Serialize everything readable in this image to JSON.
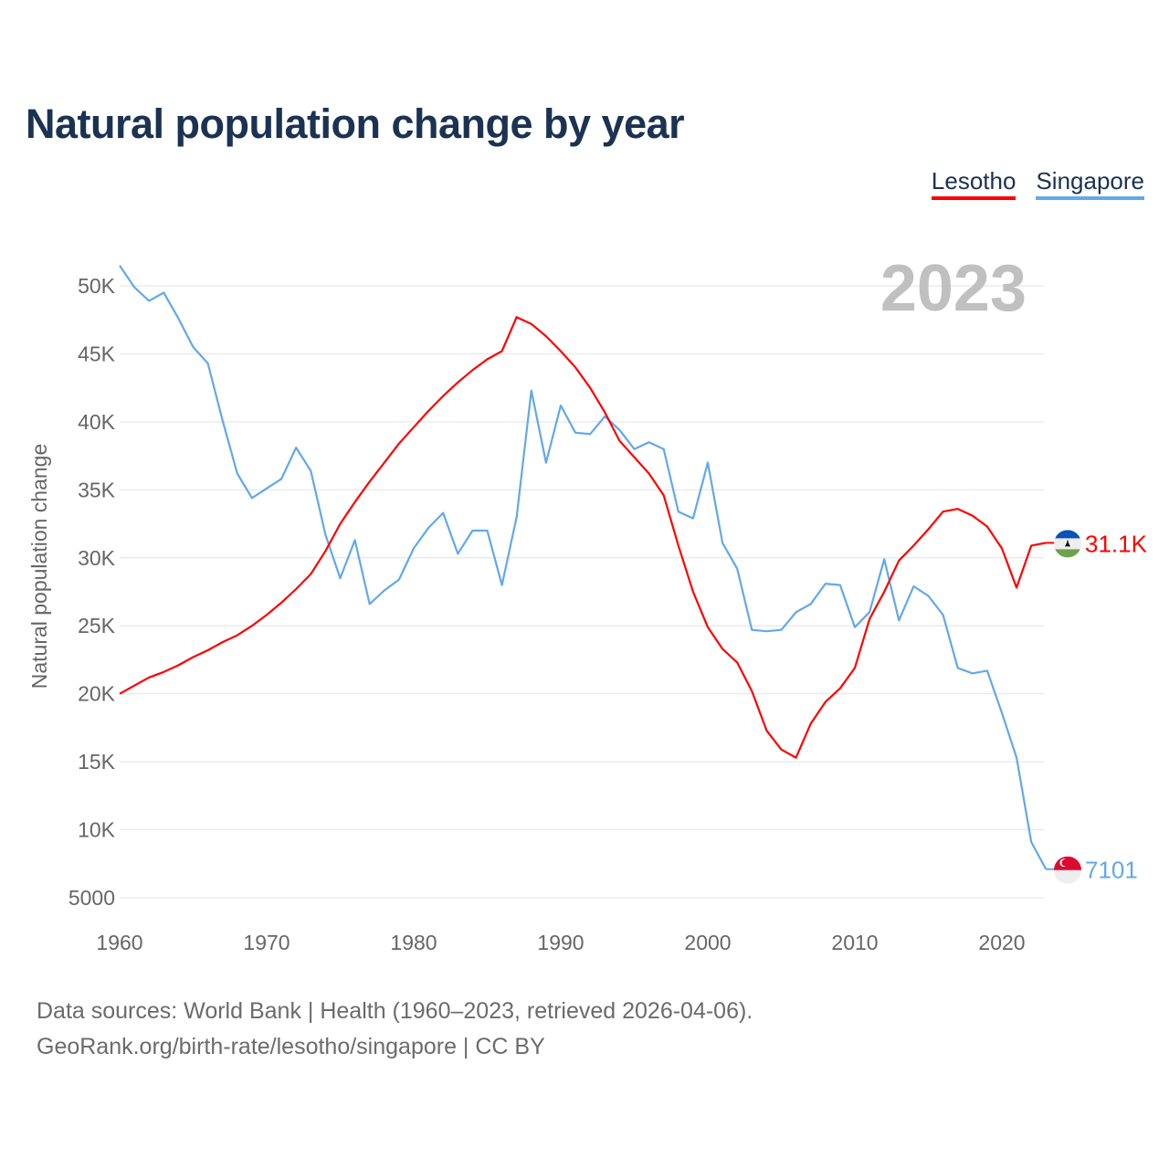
{
  "chart_data": {
    "type": "line",
    "title": "Natural population change by year",
    "ylabel": "Natural population change",
    "xlabel": "",
    "current_year_label": "2023",
    "xlim": [
      1960,
      2023
    ],
    "ylim": [
      5000,
      50000
    ],
    "x_ticks": [
      1960,
      1970,
      1980,
      1990,
      2000,
      2010,
      2020
    ],
    "x_tick_labels": [
      "1960",
      "1970",
      "1980",
      "1990",
      "2000",
      "2010",
      "2020"
    ],
    "y_ticks": [
      5000,
      10000,
      15000,
      20000,
      25000,
      30000,
      35000,
      40000,
      45000,
      50000
    ],
    "y_tick_labels": [
      "5000",
      "10K",
      "15K",
      "20K",
      "25K",
      "30K",
      "35K",
      "40K",
      "45K",
      "50K"
    ],
    "grid": true,
    "legend_position": "top-right",
    "x_start": 1960,
    "series": [
      {
        "name": "Lesotho",
        "color": "#ff0000",
        "end_label": "31.1K",
        "flag": "lesotho-flag",
        "values": [
          20.0,
          20.6,
          21.2,
          21.6,
          22.1,
          22.7,
          23.2,
          23.8,
          24.3,
          25.0,
          25.8,
          26.7,
          27.7,
          28.8,
          30.5,
          32.5,
          34.1,
          35.6,
          37.0,
          38.4,
          39.6,
          40.8,
          41.9,
          42.9,
          43.8,
          44.6,
          45.2,
          47.7,
          47.2,
          46.3,
          45.2,
          44.0,
          42.5,
          40.7,
          38.6,
          37.4,
          36.2,
          34.6,
          30.9,
          27.5,
          24.9,
          23.3,
          22.3,
          20.2,
          17.3,
          15.9,
          15.3,
          17.8,
          19.4,
          20.4,
          21.9,
          25.5,
          27.5,
          29.8,
          30.9,
          32.1,
          33.4,
          33.6,
          33.1,
          32.3,
          30.7,
          27.8,
          30.9,
          31.1
        ]
      },
      {
        "name": "Singapore",
        "color": "#62a8ea",
        "end_label": "7101",
        "flag": "singapore-flag",
        "values": [
          51.5,
          49.9,
          48.9,
          49.5,
          47.6,
          45.5,
          44.3,
          40.1,
          36.2,
          34.4,
          35.1,
          35.8,
          38.1,
          36.4,
          31.7,
          28.5,
          31.3,
          26.6,
          27.6,
          28.4,
          30.7,
          32.2,
          33.3,
          30.3,
          32.0,
          32.0,
          28.0,
          33.0,
          42.3,
          37.0,
          41.2,
          39.2,
          39.1,
          40.4,
          39.4,
          38.0,
          38.5,
          38.0,
          33.4,
          32.9,
          37.0,
          31.1,
          29.2,
          24.7,
          24.6,
          24.7,
          26.0,
          26.6,
          28.1,
          28.0,
          24.9,
          26.0,
          29.9,
          25.4,
          27.9,
          27.2,
          25.8,
          21.9,
          21.5,
          21.7,
          18.6,
          15.3,
          9.1,
          7.101
        ]
      }
    ],
    "value_unit": "thousands"
  },
  "source": {
    "line1": "Data sources: World Bank | Health (1960–2023, retrieved 2026-04-06).",
    "line2": "GeoRank.org/birth-rate/lesotho/singapore | CC BY"
  }
}
